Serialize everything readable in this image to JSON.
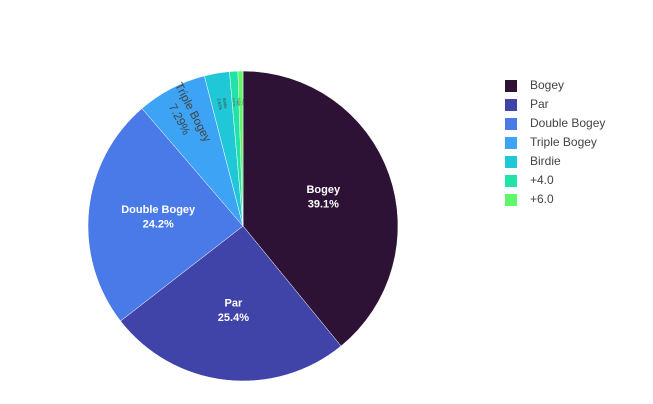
{
  "chart_data": {
    "type": "pie",
    "categories": [
      "Bogey",
      "Par",
      "Double Bogey",
      "Triple Bogey",
      "Birdie",
      "+4.0",
      "+6.0"
    ],
    "values": [
      39.1,
      25.4,
      24.2,
      7.29,
      2.62,
      0.87,
      0.52
    ],
    "value_labels": [
      "39.1%",
      "25.4%",
      "24.2%",
      "7.29%",
      "2.62%",
      "0.87%",
      "0.52%"
    ],
    "colors": [
      "#2e1235",
      "#4043a8",
      "#4a79e8",
      "#3da3f5",
      "#20c7d6",
      "#22e3a6",
      "#5ef86a"
    ],
    "legend": "right"
  }
}
